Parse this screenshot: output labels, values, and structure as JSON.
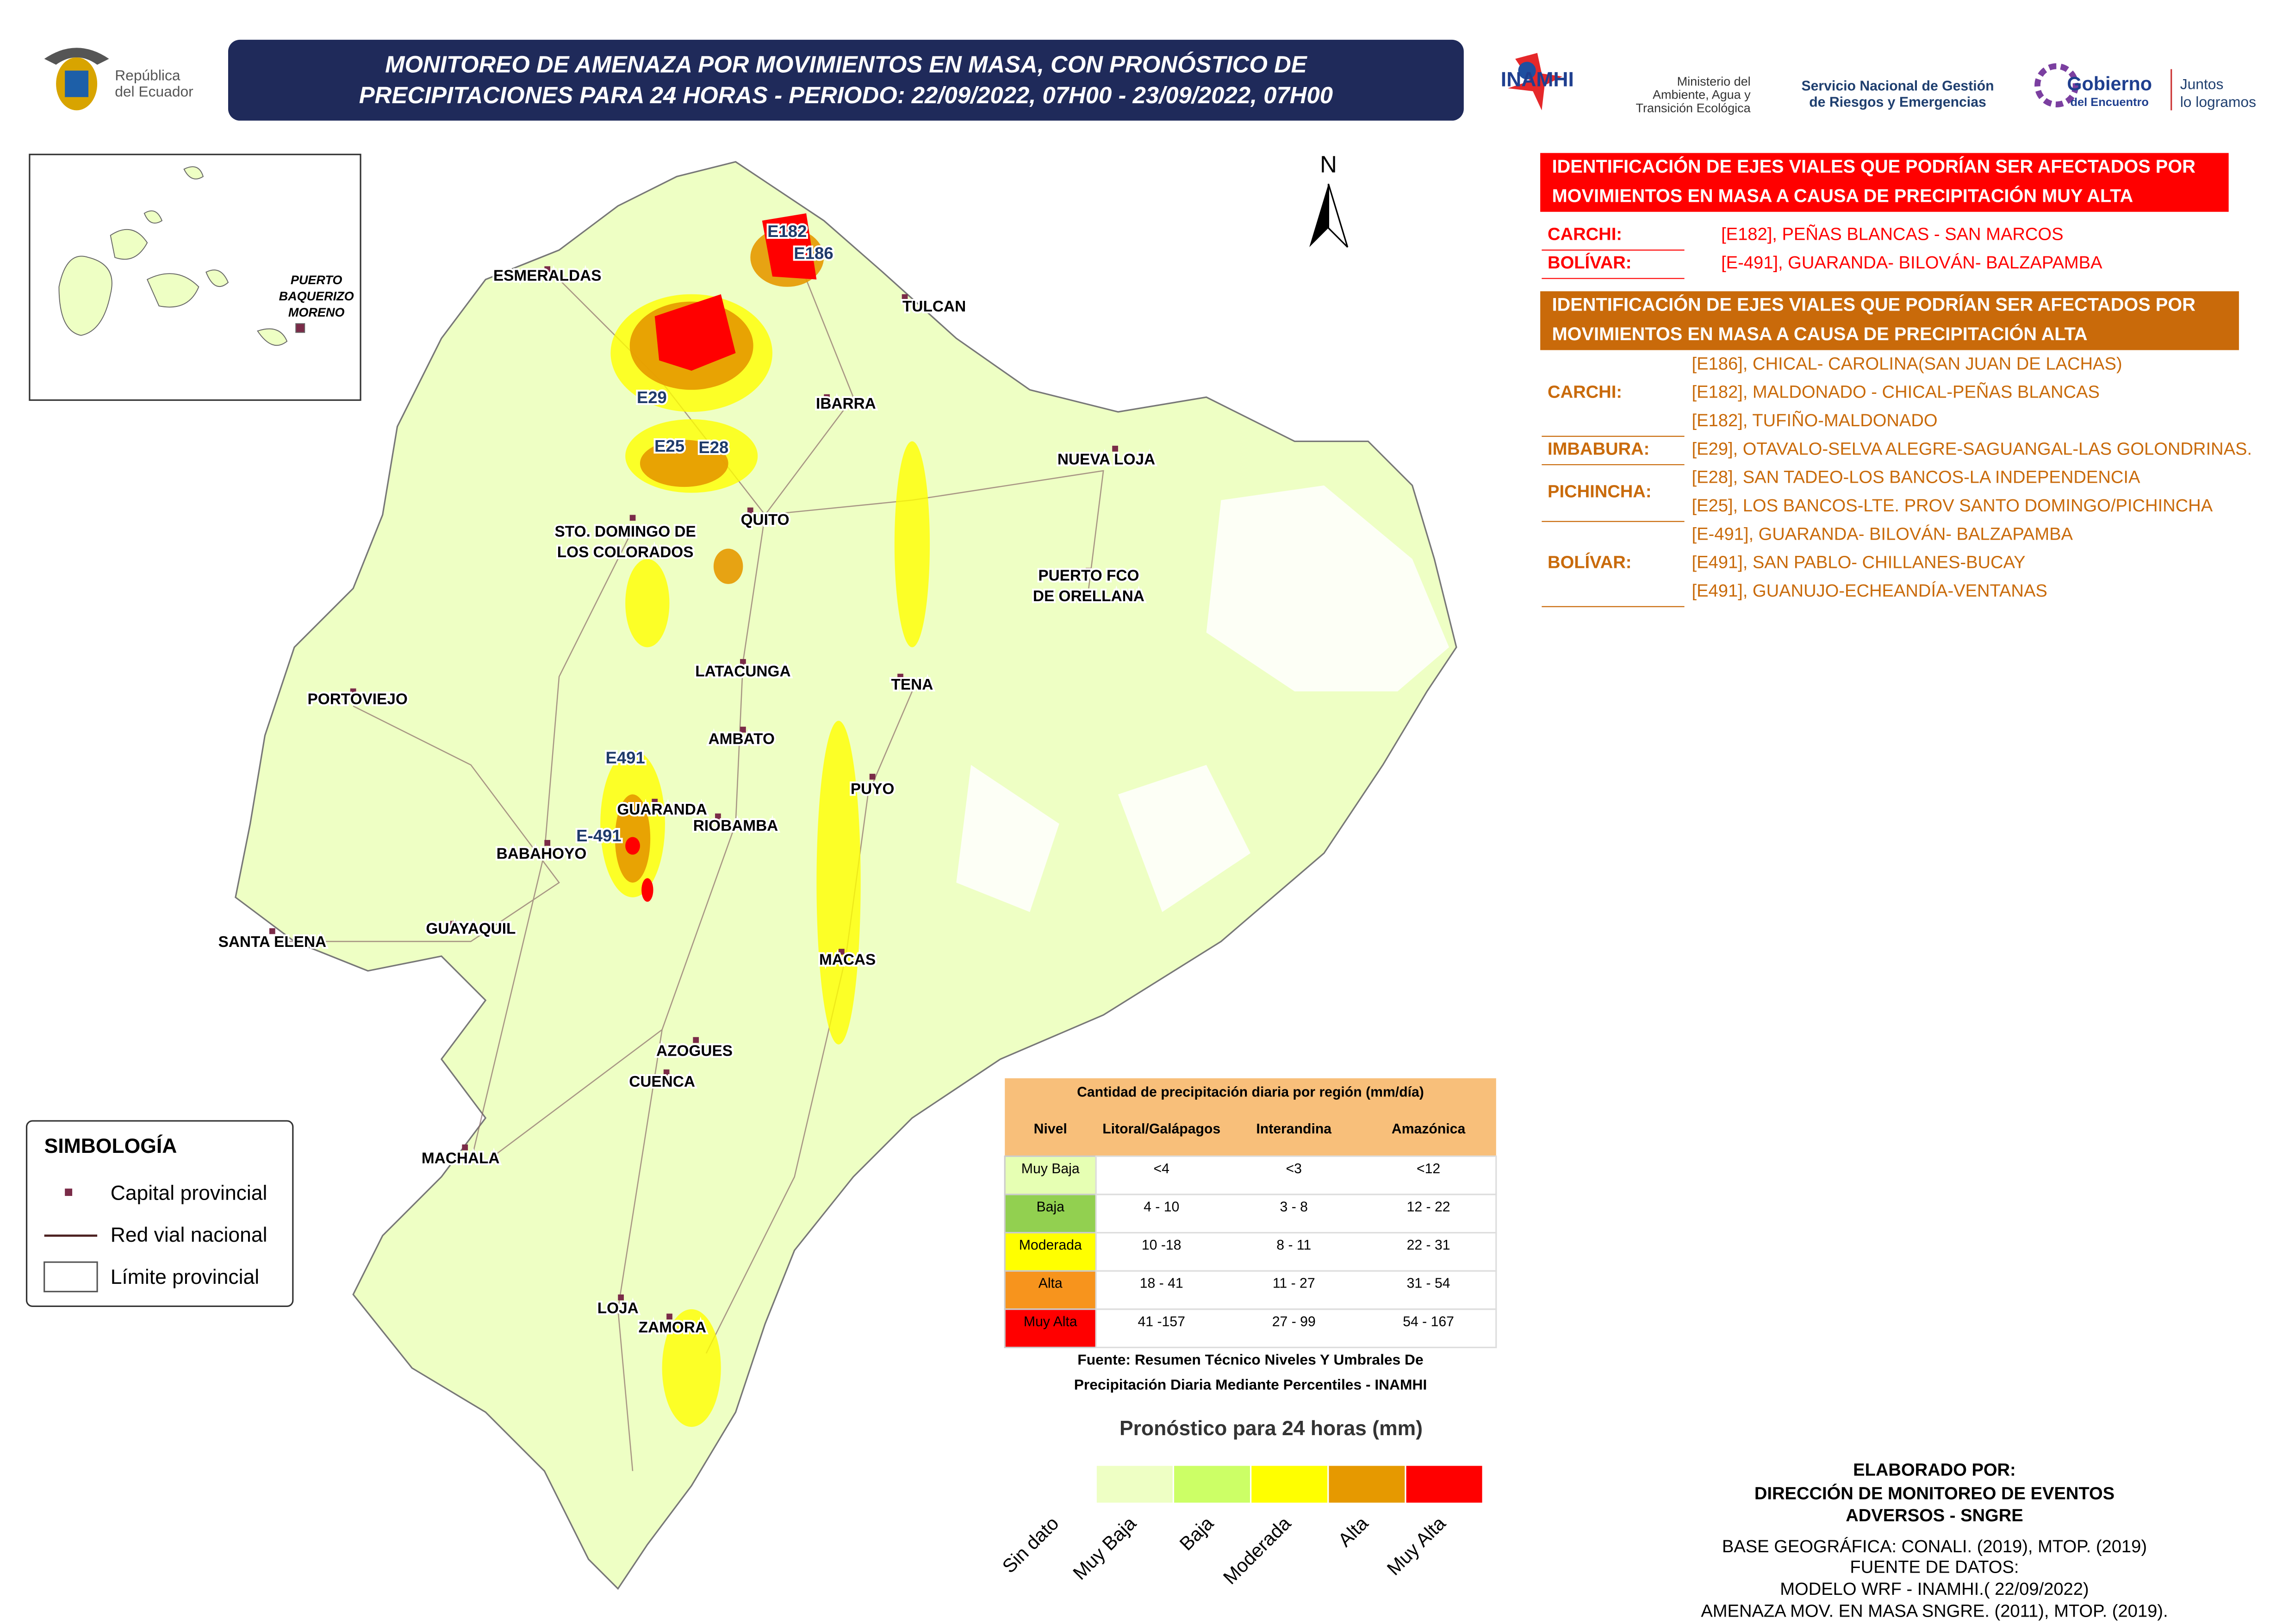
{
  "header": {
    "title_lines": [
      "MONITOREO DE AMENAZA POR MOVIMIENTOS EN MASA, CON PRONÓSTICO DE",
      "PRECIPITACIONES PARA 24 HORAS - PERIODO: 22/09/2022, 07H00 - 23/09/2022, 07H00"
    ],
    "republica": [
      "República",
      "del Ecuador"
    ],
    "inamhi": "INAMHI",
    "ministerio": [
      "Ministerio del",
      "Ambiente, Agua y",
      "Transición Ecológica"
    ],
    "sngre": [
      "Servicio Nacional de Gestión",
      "de Riesgos y Emergencias"
    ],
    "gobierno": [
      "Gobierno",
      "del Encuentro"
    ],
    "juntos": [
      "Juntos",
      "lo logramos"
    ]
  },
  "map": {
    "north": "N",
    "inset_label": [
      "PUERTO",
      "BAQUERIZO",
      "MORENO"
    ],
    "cities": [
      "ESMERALDAS",
      "TULCAN",
      "IBARRA",
      "NUEVA LOJA",
      "QUITO",
      "STO. DOMINGO DE",
      "LOS COLORADOS",
      "PUERTO FCO",
      "DE ORELLANA",
      "LATACUNGA",
      "TENA",
      "PORTOVIEJO",
      "AMBATO",
      "PUYO",
      "GUARANDA",
      "RIOBAMBA",
      "BABAHOYO",
      "SANTA ELENA",
      "GUAYAQUIL",
      "MACAS",
      "AZOGUES",
      "CUENCA",
      "MACHALA",
      "LOJA",
      "ZAMORA"
    ],
    "routes": [
      "E182",
      "E186",
      "E29",
      "E25",
      "E28",
      "E491",
      "E-491"
    ]
  },
  "panel": {
    "muy_alta": {
      "heading": [
        "IDENTIFICACIÓN DE EJES VIALES QUE PODRÍAN SER AFECTADOS POR",
        "MOVIMIENTOS EN MASA A CAUSA DE  PRECIPITACIÓN MUY ALTA"
      ],
      "rows": [
        {
          "province": "CARCHI:",
          "roads": [
            "[E182], PEÑAS BLANCAS - SAN MARCOS"
          ]
        },
        {
          "province": "BOLÍVAR:",
          "roads": [
            "[E-491], GUARANDA- BILOVÁN- BALZAPAMBA"
          ]
        }
      ]
    },
    "alta": {
      "heading": [
        "IDENTIFICACIÓN DE EJES VIALES QUE PODRÍAN SER AFECTADOS POR",
        "MOVIMIENTOS EN MASA A CAUSA DE  PRECIPITACIÓN ALTA"
      ],
      "rows": [
        {
          "province": "CARCHI:",
          "roads": [
            "[E186], CHICAL- CAROLINA(SAN JUAN DE LACHAS)",
            "[E182], MALDONADO - CHICAL-PEÑAS BLANCAS",
            "[E182], TUFIÑO-MALDONADO"
          ]
        },
        {
          "province": "IMBABURA:",
          "roads": [
            "[E29], OTAVALO-SELVA ALEGRE-SAGUANGAL-LAS GOLONDRINAS."
          ]
        },
        {
          "province": "PICHINCHA:",
          "roads": [
            "[E28], SAN TADEO-LOS BANCOS-LA INDEPENDENCIA",
            "[E25], LOS BANCOS-LTE. PROV SANTO DOMINGO/PICHINCHA"
          ]
        },
        {
          "province": "BOLÍVAR:",
          "roads": [
            "[E-491], GUARANDA- BILOVÁN- BALZAPAMBA",
            "[E491], SAN PABLO- CHILLANES-BUCAY",
            "[E491], GUANUJO-ECHEANDÍA-VENTANAS"
          ]
        }
      ]
    }
  },
  "table": {
    "caption": "Cantidad de precipitación diaria por región (mm/día)",
    "header": [
      "Nivel",
      "Litoral/Galápagos",
      "Interandina",
      "Amazónica"
    ],
    "rows": [
      [
        "Muy Baja",
        "<4",
        "<3",
        "<12"
      ],
      [
        "Baja",
        "4 - 10",
        "3 - 8",
        "12 - 22"
      ],
      [
        "Moderada",
        "10 -18",
        "8 - 11",
        "22 - 31"
      ],
      [
        "Alta",
        "18 - 41",
        "11 - 27",
        "31 - 54"
      ],
      [
        "Muy Alta",
        "41 -157",
        "27 - 99",
        "54 - 167"
      ]
    ],
    "row_colors": [
      "#e6ffb3",
      "#92d050",
      "#ffff00",
      "#f7941d",
      "#ff0000"
    ],
    "source": [
      "Fuente: Resumen Técnico Niveles Y Umbrales De",
      "Precipitación Diaria Mediante Percentiles - INAMHI"
    ]
  },
  "symbology": {
    "title": "SIMBOLOGÍA",
    "items": [
      "Capital provincial",
      "Red vial nacional",
      "Límite provincial"
    ]
  },
  "scale": {
    "title": "Pronóstico para 24 horas (mm)",
    "labels": [
      "Sin dato",
      "Muy Baja",
      "Baja",
      "Moderada",
      "Alta",
      "Muy Alta"
    ],
    "colors": [
      "#eeffc4",
      "#ccff66",
      "#ffff00",
      "#e69900",
      "#ff0000"
    ]
  },
  "credits": [
    "ELABORADO POR:",
    "DIRECCIÓN DE MONITOREO DE EVENTOS",
    "ADVERSOS - SNGRE",
    "BASE GEOGRÁFICA: CONALI. (2019), MTOP. (2019)",
    "FUENTE DE DATOS:",
    "MODELO WRF - INAMHI.( 22/09/2022)",
    "AMENAZA MOV. EN MASA SNGRE. (2011), MTOP. (2019)."
  ]
}
